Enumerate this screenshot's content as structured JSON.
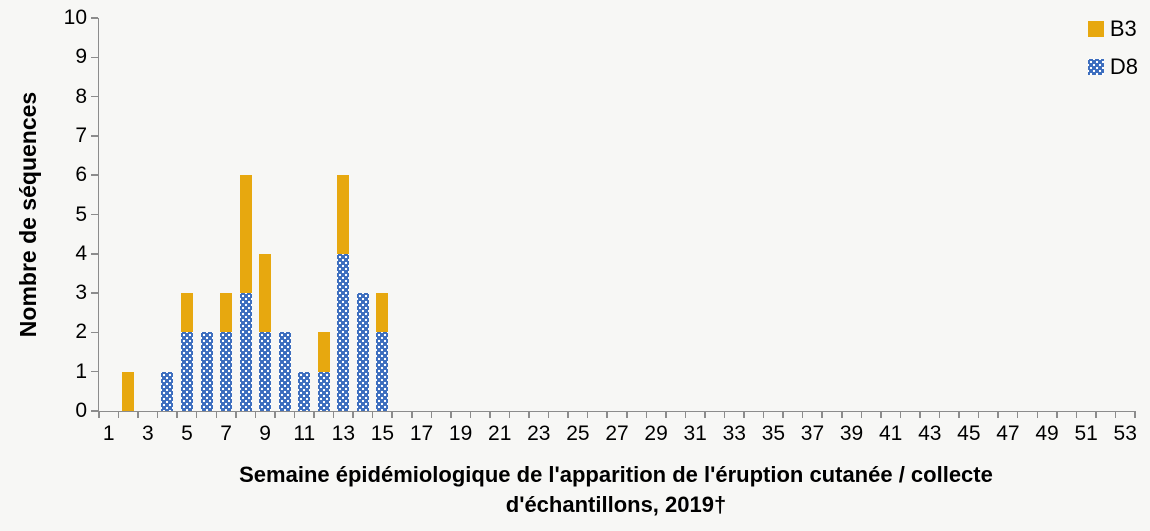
{
  "chart_data": {
    "type": "bar",
    "stacked": true,
    "title": "",
    "ylabel": "Nombre de séquences",
    "xlabel": "Semaine épidémiologique de l'apparition de l'éruption cutanée / collecte d'échantillons, 2019†",
    "xlabel_lines": [
      "Semaine épidémiologique de l'apparition de l'éruption cutanée / collecte",
      "d'échantillons, 2019†"
    ],
    "ylim": [
      0,
      10
    ],
    "y_tick_labels": [
      "0",
      "1",
      "2",
      "3",
      "4",
      "5",
      "6",
      "7",
      "8",
      "9",
      "10"
    ],
    "x_range": [
      1,
      53
    ],
    "x_tick_labels": [
      "1",
      "3",
      "5",
      "7",
      "9",
      "11",
      "13",
      "15",
      "17",
      "19",
      "21",
      "23",
      "25",
      "27",
      "29",
      "31",
      "33",
      "35",
      "37",
      "39",
      "41",
      "43",
      "45",
      "47",
      "49",
      "51",
      "53"
    ],
    "gridlines": false,
    "legend_position": "top-right",
    "colors": {
      "B3": "#E7A80F",
      "D8": "#3C6DBE",
      "axis": "#8C8C8C",
      "background": "#F7F7F5",
      "text": "#000000"
    },
    "series": [
      {
        "name": "B3",
        "color": "#E7A80F",
        "fill": "solid",
        "stack_order": 2,
        "points": {
          "2": 1,
          "5": 1,
          "7": 1,
          "8": 3,
          "9": 2,
          "12": 1,
          "13": 2,
          "15": 1
        }
      },
      {
        "name": "D8",
        "color": "#3C6DBE",
        "fill": "dotted-white-on-blue",
        "stack_order": 1,
        "points": {
          "4": 1,
          "5": 2,
          "6": 2,
          "7": 2,
          "8": 3,
          "9": 2,
          "10": 2,
          "11": 1,
          "12": 1,
          "13": 4,
          "14": 3,
          "15": 2
        }
      }
    ]
  }
}
